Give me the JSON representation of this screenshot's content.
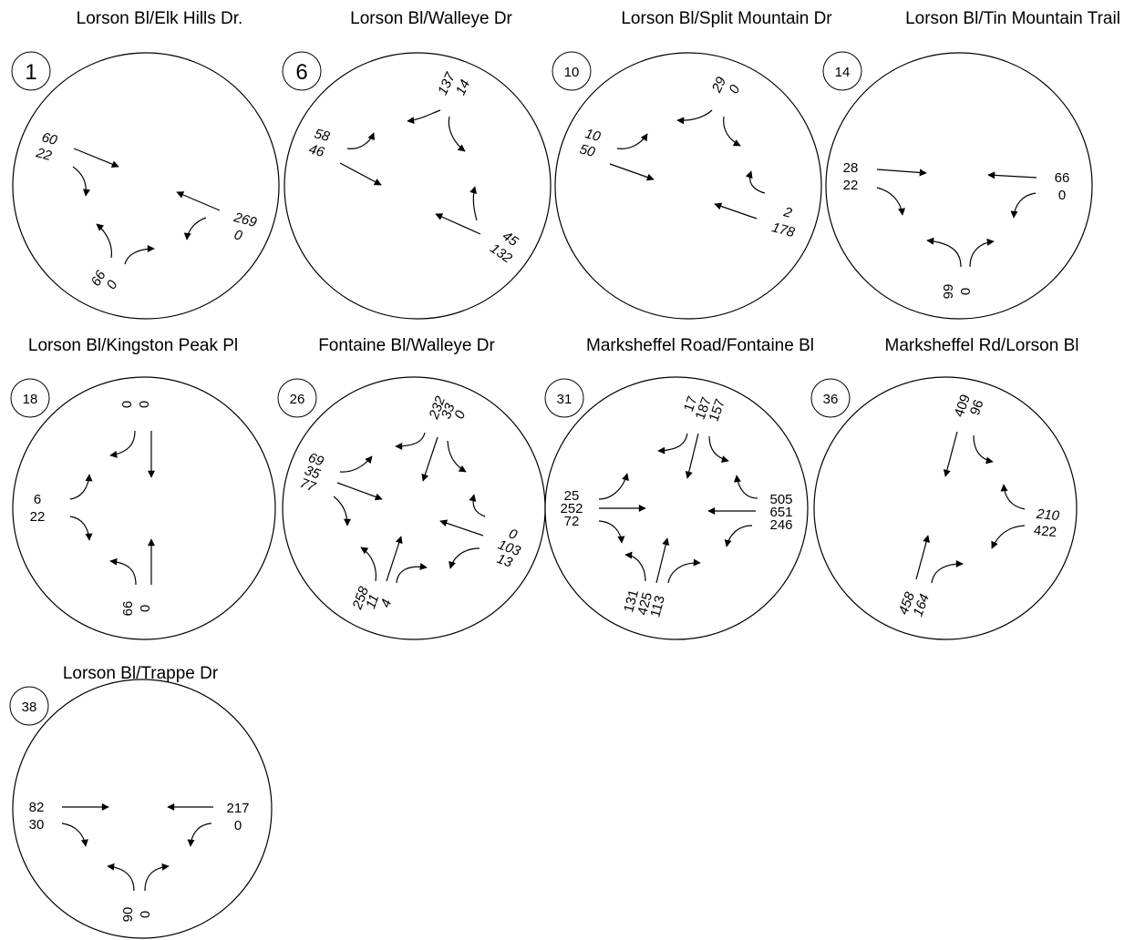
{
  "intersections": [
    {
      "id": "1",
      "title": "Lorson Bl/Elk Hills Dr.",
      "volumes": {
        "west": [
          "60",
          "22"
        ],
        "east": [
          "269",
          "0"
        ],
        "south": [
          "66",
          "0"
        ]
      }
    },
    {
      "id": "6",
      "title": "Lorson Bl/Walleye Dr",
      "volumes": {
        "north": [
          "137",
          "14"
        ],
        "west": [
          "58",
          "46"
        ],
        "east": [
          "45",
          "132"
        ]
      }
    },
    {
      "id": "10",
      "title": "Lorson Bl/Split Mountain Dr",
      "volumes": {
        "north": [
          "29",
          "0"
        ],
        "west": [
          "10",
          "50"
        ],
        "east": [
          "2",
          "178"
        ]
      }
    },
    {
      "id": "14",
      "title": "Lorson Bl/Tin Mountain Trail",
      "volumes": {
        "west": [
          "28",
          "22"
        ],
        "east": [
          "66",
          "0"
        ],
        "south": [
          "99",
          "0"
        ]
      }
    },
    {
      "id": "18",
      "title": "Lorson Bl/Kingston Peak Pl",
      "volumes": {
        "north": [
          "0",
          "0"
        ],
        "west": [
          "6",
          "22"
        ],
        "south": [
          "66",
          "0"
        ]
      }
    },
    {
      "id": "26",
      "title": "Fontaine Bl/Walleye Dr",
      "volumes": {
        "north": [
          "232",
          "33",
          "0"
        ],
        "west": [
          "69",
          "35",
          "77"
        ],
        "east": [
          "0",
          "103",
          "13"
        ],
        "south": [
          "258",
          "11",
          "4"
        ]
      }
    },
    {
      "id": "31",
      "title": "Marksheffel Road/Fontaine Bl",
      "volumes": {
        "north": [
          "17",
          "187",
          "157"
        ],
        "west": [
          "25",
          "252",
          "72"
        ],
        "east": [
          "505",
          "651",
          "246"
        ],
        "south": [
          "131",
          "425",
          "113"
        ]
      }
    },
    {
      "id": "36",
      "title": "Marksheffel Rd/Lorson Bl",
      "volumes": {
        "north": [
          "409",
          "96"
        ],
        "east": [
          "210",
          "422"
        ],
        "south": [
          "458",
          "164"
        ]
      }
    },
    {
      "id": "38",
      "title": "Lorson Bl/Trappe Dr",
      "volumes": {
        "west": [
          "82",
          "30"
        ],
        "east": [
          "217",
          "0"
        ],
        "south": [
          "90",
          "0"
        ]
      }
    }
  ]
}
